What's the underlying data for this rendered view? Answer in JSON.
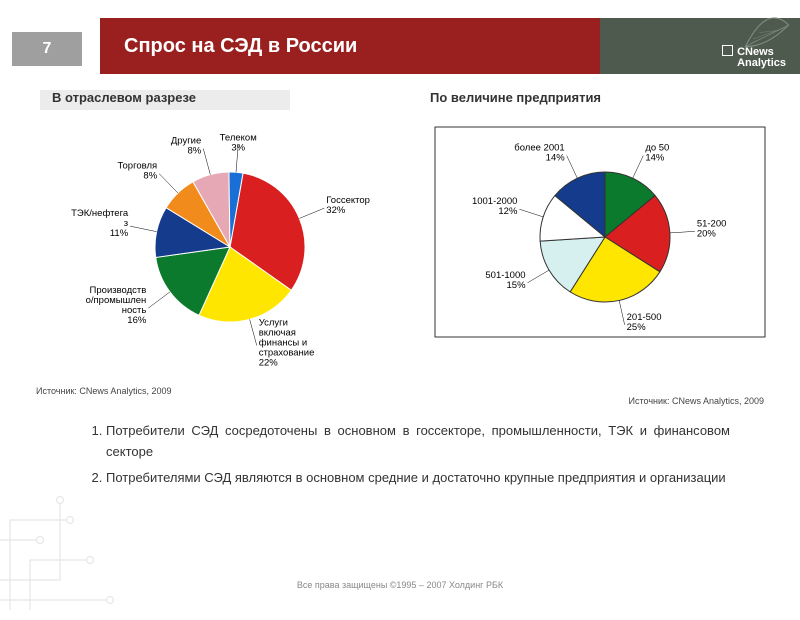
{
  "page": {
    "number": "7",
    "title": "Спрос на СЭД в России",
    "brand_line1": "CNews",
    "brand_line2": "Analytics",
    "page_num_bg": "#9f9f9f",
    "header_red_bg": "#9a2020",
    "header_right_bg": "#4e5a4d",
    "sub_band_bg": "#ececec",
    "circuit_color": "#bdbdbd"
  },
  "subtitles": {
    "left": "В отраслевом разрезе",
    "right": "По величине предприятия"
  },
  "chart_left": {
    "type": "pie",
    "border_color": "#ffffff",
    "label_fontsize": 9.5,
    "source": "Источник: CNews Analytics, 2009",
    "slices": [
      {
        "label": "Госсектор",
        "pct": 32,
        "label_line2": "32%",
        "color": "#d91f1f"
      },
      {
        "label": "Услуги",
        "pct": 22,
        "label_line2": "включая",
        "label_line3": "финансы и",
        "label_line4": "страхование",
        "label_line5": "22%",
        "color": "#ffe600"
      },
      {
        "label": "Производств",
        "pct": 16,
        "label_line2": "о/промышлен",
        "label_line3": "ность",
        "label_line4": "16%",
        "color": "#0b7a2d"
      },
      {
        "label": "ТЭК/нефтега",
        "pct": 11,
        "label_line2": "з",
        "label_line3": "11%",
        "color": "#143b8c"
      },
      {
        "label": "Торговля",
        "pct": 8,
        "label_line2": "8%",
        "color": "#f18b1c"
      },
      {
        "label": "Другие",
        "pct": 8,
        "label_line2": "8%",
        "color": "#e7a8b5"
      },
      {
        "label": "Телеком",
        "pct": 3,
        "label_line2": "3%",
        "color": "#1a6fd6"
      }
    ]
  },
  "chart_right": {
    "type": "pie",
    "border_color": "#333333",
    "border_width": 1,
    "has_frame": true,
    "frame_color": "#333333",
    "label_fontsize": 9.5,
    "source": "Источник: CNews Analytics, 2009",
    "slices": [
      {
        "label": "до 50",
        "pct": 14,
        "label_line2": "14%",
        "color": "#0b7a2d"
      },
      {
        "label": "51-200",
        "pct": 20,
        "label_line2": "20%",
        "color": "#d91f1f"
      },
      {
        "label": "201-500",
        "pct": 25,
        "label_line2": "25%",
        "color": "#ffe600"
      },
      {
        "label": "501-1000",
        "pct": 15,
        "label_line2": "15%",
        "color": "#d6efef"
      },
      {
        "label": "1001-2000",
        "pct": 12,
        "label_line2": "12%",
        "color": "#ffffff"
      },
      {
        "label": "более 2001",
        "pct": 14,
        "label_line2": "14%",
        "color": "#143b8c"
      }
    ]
  },
  "footnotes": {
    "items": [
      "Потребители СЭД сосредоточены в основном в госсекторе, промышленности, ТЭК и финансовом секторе",
      "Потребителями СЭД являются в основном средние и достаточно крупные предприятия и организации"
    ]
  },
  "footer": {
    "copyright": "Все права защищены ©1995 – 2007 Холдинг РБК"
  }
}
